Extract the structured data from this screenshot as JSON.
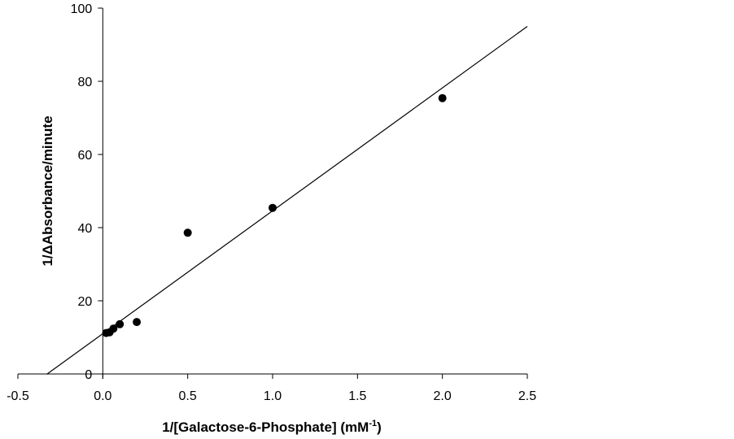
{
  "chart_data": {
    "type": "scatter",
    "title": "",
    "xlabel": {
      "main": "1/[Galactose-6-Phosphate] (mM",
      "sup": "-1",
      "close": ")"
    },
    "ylabel": "1/ΔAbsorbance/minute",
    "xlim": [
      -0.5,
      2.5
    ],
    "ylim": [
      0,
      100
    ],
    "xticks": [
      -0.5,
      0.0,
      0.5,
      1.0,
      1.5,
      2.0,
      2.5
    ],
    "xtick_labels": [
      "-0.5",
      "0.0",
      "0.5",
      "1.0",
      "1.5",
      "2.0",
      "2.5"
    ],
    "yticks": [
      0,
      20,
      40,
      60,
      80,
      100
    ],
    "ytick_labels": [
      "0",
      "20",
      "40",
      "60",
      "80",
      "100"
    ],
    "grid": false,
    "legend": "none",
    "series": [
      {
        "points": [
          {
            "x": 0.02,
            "y": 11.2
          },
          {
            "x": 0.04,
            "y": 11.4
          },
          {
            "x": 0.0625,
            "y": 12.4
          },
          {
            "x": 0.1,
            "y": 13.6
          },
          {
            "x": 0.2,
            "y": 14.2
          },
          {
            "x": 0.5,
            "y": 38.6
          },
          {
            "x": 1.0,
            "y": 45.4
          },
          {
            "x": 2.0,
            "y": 75.4
          }
        ]
      }
    ],
    "fit_line": {
      "type": "linear",
      "x_range": [
        -0.33,
        2.5
      ],
      "slope": 33.6,
      "intercept": 11.0
    },
    "colors": {
      "marker": "#000000",
      "line": "#000000",
      "axis": "#000000"
    }
  }
}
